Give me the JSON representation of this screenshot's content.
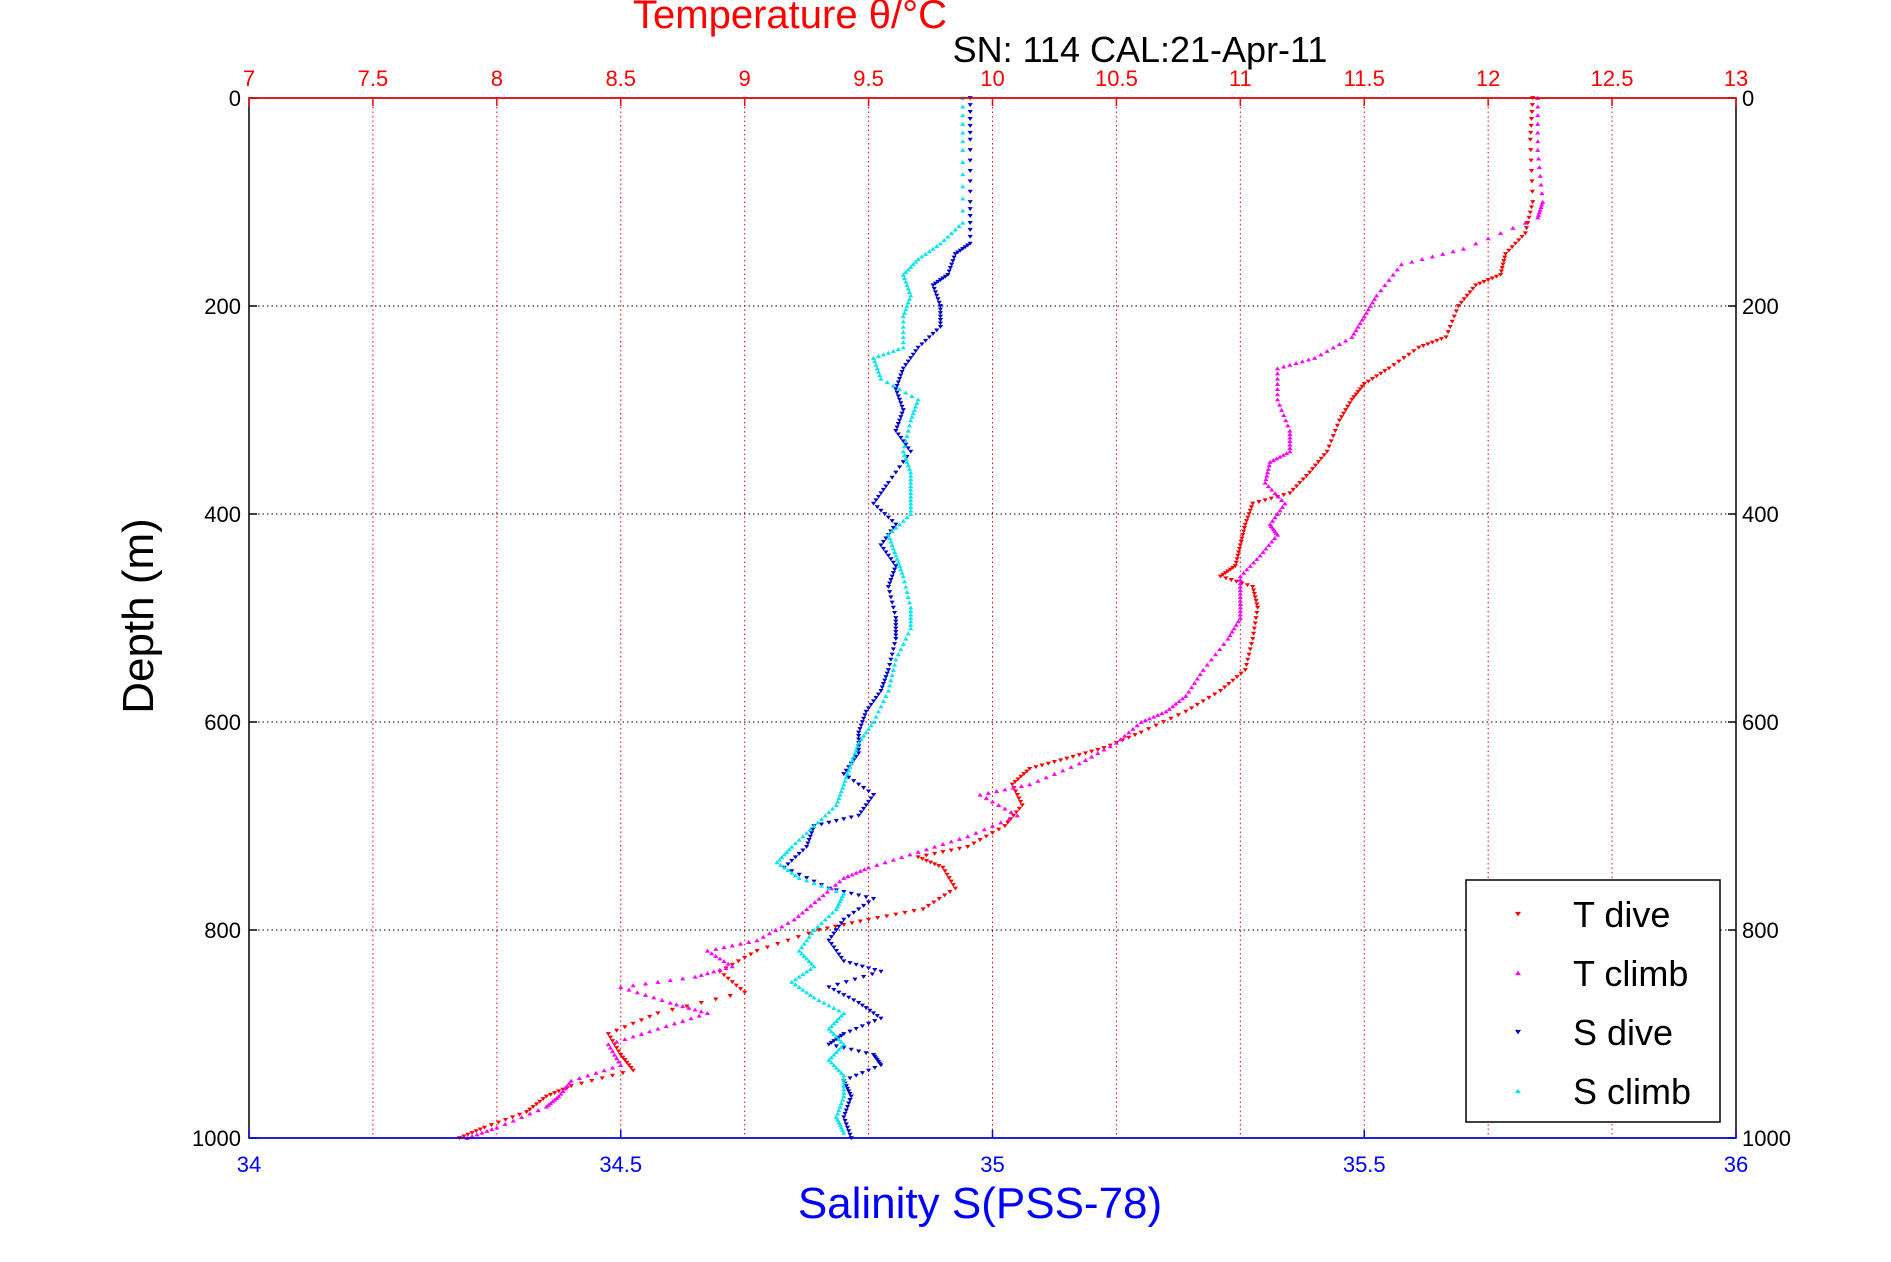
{
  "chart_data": {
    "type": "scatter",
    "title": "Temperature θ/°C",
    "annotation": "SN: 114  CAL:21-Apr-11",
    "ylabel": "Depth (m)",
    "xlabel_bottom": "Salinity S(PSS-78)",
    "xlabel_top": "Temperature θ/°C",
    "y_reversed": true,
    "ylim": [
      0,
      1000
    ],
    "y_ticks": [
      "0",
      "200",
      "400",
      "600",
      "800",
      "1000"
    ],
    "x_top_lim": [
      7,
      13
    ],
    "x_top_ticks": [
      "7",
      "7.5",
      "8",
      "8.5",
      "9",
      "9.5",
      "10",
      "10.5",
      "11",
      "11.5",
      "12",
      "12.5",
      "13"
    ],
    "x_bottom_lim": [
      34,
      36
    ],
    "x_bottom_ticks": [
      "34",
      "34.5",
      "35",
      "35.5",
      "36"
    ],
    "grid": true,
    "legend_position": "bottom-right",
    "colors": {
      "temp_axis": "#ff0000",
      "sal_axis": "#0000ff",
      "grid": "#000000"
    },
    "series": [
      {
        "name": "T dive",
        "axis": "top",
        "color": "#ff0000",
        "marker": "triangle-down",
        "points": [
          [
            12.18,
            0
          ],
          [
            12.17,
            40
          ],
          [
            12.18,
            100
          ],
          [
            12.15,
            130
          ],
          [
            12.07,
            150
          ],
          [
            12.05,
            170
          ],
          [
            11.95,
            180
          ],
          [
            11.88,
            200
          ],
          [
            11.83,
            230
          ],
          [
            11.72,
            240
          ],
          [
            11.6,
            260
          ],
          [
            11.5,
            275
          ],
          [
            11.45,
            290
          ],
          [
            11.4,
            310
          ],
          [
            11.35,
            340
          ],
          [
            11.28,
            360
          ],
          [
            11.2,
            380
          ],
          [
            11.05,
            390
          ],
          [
            11.02,
            410
          ],
          [
            11.0,
            430
          ],
          [
            10.98,
            450
          ],
          [
            10.92,
            460
          ],
          [
            11.05,
            470
          ],
          [
            11.07,
            490
          ],
          [
            11.05,
            520
          ],
          [
            11.02,
            550
          ],
          [
            10.92,
            570
          ],
          [
            10.78,
            590
          ],
          [
            10.6,
            610
          ],
          [
            10.45,
            625
          ],
          [
            10.3,
            635
          ],
          [
            10.15,
            645
          ],
          [
            10.08,
            660
          ],
          [
            10.12,
            680
          ],
          [
            10.05,
            700
          ],
          [
            9.9,
            720
          ],
          [
            9.7,
            730
          ],
          [
            9.8,
            740
          ],
          [
            9.85,
            760
          ],
          [
            9.72,
            780
          ],
          [
            9.5,
            790
          ],
          [
            9.3,
            800
          ],
          [
            9.05,
            820
          ],
          [
            8.9,
            840
          ],
          [
            9.0,
            860
          ],
          [
            8.65,
            880
          ],
          [
            8.45,
            900
          ],
          [
            8.5,
            920
          ],
          [
            8.55,
            935
          ],
          [
            8.3,
            950
          ],
          [
            8.2,
            960
          ],
          [
            8.12,
            975
          ],
          [
            7.95,
            990
          ],
          [
            7.85,
            1000
          ]
        ]
      },
      {
        "name": "T climb",
        "axis": "top",
        "color": "#ff00ff",
        "marker": "triangle-up",
        "points": [
          [
            12.2,
            0
          ],
          [
            12.2,
            50
          ],
          [
            12.22,
            100
          ],
          [
            12.2,
            115
          ],
          [
            11.9,
            145
          ],
          [
            11.65,
            160
          ],
          [
            11.55,
            190
          ],
          [
            11.5,
            210
          ],
          [
            11.45,
            230
          ],
          [
            11.3,
            250
          ],
          [
            11.15,
            260
          ],
          [
            11.15,
            290
          ],
          [
            11.2,
            320
          ],
          [
            11.2,
            340
          ],
          [
            11.12,
            350
          ],
          [
            11.1,
            370
          ],
          [
            11.18,
            390
          ],
          [
            11.12,
            410
          ],
          [
            11.15,
            420
          ],
          [
            11.08,
            440
          ],
          [
            11.0,
            460
          ],
          [
            11.0,
            480
          ],
          [
            11.0,
            500
          ],
          [
            10.95,
            520
          ],
          [
            10.85,
            550
          ],
          [
            10.78,
            575
          ],
          [
            10.7,
            590
          ],
          [
            10.6,
            600
          ],
          [
            10.5,
            620
          ],
          [
            10.35,
            640
          ],
          [
            10.15,
            660
          ],
          [
            9.95,
            670
          ],
          [
            10.1,
            690
          ],
          [
            9.9,
            710
          ],
          [
            9.7,
            725
          ],
          [
            9.5,
            740
          ],
          [
            9.4,
            750
          ],
          [
            9.3,
            770
          ],
          [
            9.2,
            790
          ],
          [
            9.05,
            810
          ],
          [
            8.85,
            820
          ],
          [
            8.95,
            835
          ],
          [
            8.8,
            845
          ],
          [
            8.5,
            855
          ],
          [
            8.7,
            870
          ],
          [
            8.85,
            880
          ],
          [
            8.65,
            895
          ],
          [
            8.45,
            910
          ],
          [
            8.5,
            930
          ],
          [
            8.3,
            945
          ],
          [
            8.25,
            960
          ],
          [
            8.2,
            970
          ],
          [
            8.0,
            990
          ],
          [
            7.88,
            1000
          ]
        ]
      },
      {
        "name": "S dive",
        "axis": "bottom",
        "color": "#0000cc",
        "marker": "triangle-down",
        "points": [
          [
            34.97,
            0
          ],
          [
            34.97,
            40
          ],
          [
            34.97,
            100
          ],
          [
            34.97,
            140
          ],
          [
            34.95,
            150
          ],
          [
            34.94,
            170
          ],
          [
            34.92,
            180
          ],
          [
            34.93,
            200
          ],
          [
            34.93,
            220
          ],
          [
            34.9,
            240
          ],
          [
            34.88,
            260
          ],
          [
            34.87,
            280
          ],
          [
            34.88,
            300
          ],
          [
            34.87,
            320
          ],
          [
            34.89,
            340
          ],
          [
            34.86,
            370
          ],
          [
            34.84,
            390
          ],
          [
            34.87,
            410
          ],
          [
            34.85,
            430
          ],
          [
            34.87,
            450
          ],
          [
            34.86,
            470
          ],
          [
            34.87,
            500
          ],
          [
            34.87,
            520
          ],
          [
            34.86,
            550
          ],
          [
            34.85,
            570
          ],
          [
            34.83,
            590
          ],
          [
            34.82,
            610
          ],
          [
            34.82,
            630
          ],
          [
            34.8,
            650
          ],
          [
            34.84,
            670
          ],
          [
            34.82,
            690
          ],
          [
            34.76,
            700
          ],
          [
            34.75,
            720
          ],
          [
            34.72,
            740
          ],
          [
            34.78,
            760
          ],
          [
            34.84,
            770
          ],
          [
            34.8,
            790
          ],
          [
            34.78,
            810
          ],
          [
            34.8,
            830
          ],
          [
            34.85,
            840
          ],
          [
            34.78,
            855
          ],
          [
            34.82,
            870
          ],
          [
            34.85,
            885
          ],
          [
            34.8,
            900
          ],
          [
            34.78,
            910
          ],
          [
            34.84,
            920
          ],
          [
            34.85,
            930
          ],
          [
            34.8,
            945
          ],
          [
            34.81,
            960
          ],
          [
            34.8,
            980
          ],
          [
            34.81,
            1000
          ]
        ]
      },
      {
        "name": "S climb",
        "axis": "bottom",
        "color": "#00e5ee",
        "marker": "triangle-up",
        "points": [
          [
            34.96,
            0
          ],
          [
            34.96,
            50
          ],
          [
            34.96,
            120
          ],
          [
            34.93,
            140
          ],
          [
            34.9,
            155
          ],
          [
            34.88,
            170
          ],
          [
            34.89,
            190
          ],
          [
            34.88,
            210
          ],
          [
            34.88,
            240
          ],
          [
            34.84,
            250
          ],
          [
            34.85,
            270
          ],
          [
            34.9,
            290
          ],
          [
            34.89,
            310
          ],
          [
            34.88,
            340
          ],
          [
            34.89,
            360
          ],
          [
            34.89,
            380
          ],
          [
            34.89,
            400
          ],
          [
            34.86,
            420
          ],
          [
            34.87,
            440
          ],
          [
            34.88,
            460
          ],
          [
            34.89,
            490
          ],
          [
            34.89,
            510
          ],
          [
            34.87,
            540
          ],
          [
            34.86,
            570
          ],
          [
            34.84,
            600
          ],
          [
            34.82,
            620
          ],
          [
            34.81,
            640
          ],
          [
            34.8,
            660
          ],
          [
            34.79,
            680
          ],
          [
            34.76,
            700
          ],
          [
            34.73,
            720
          ],
          [
            34.71,
            735
          ],
          [
            34.74,
            750
          ],
          [
            34.8,
            765
          ],
          [
            34.79,
            780
          ],
          [
            34.76,
            800
          ],
          [
            34.74,
            820
          ],
          [
            34.76,
            835
          ],
          [
            34.73,
            850
          ],
          [
            34.76,
            865
          ],
          [
            34.8,
            880
          ],
          [
            34.78,
            895
          ],
          [
            34.8,
            910
          ],
          [
            34.78,
            925
          ],
          [
            34.8,
            940
          ],
          [
            34.8,
            960
          ],
          [
            34.79,
            980
          ],
          [
            34.8,
            995
          ]
        ]
      }
    ]
  }
}
